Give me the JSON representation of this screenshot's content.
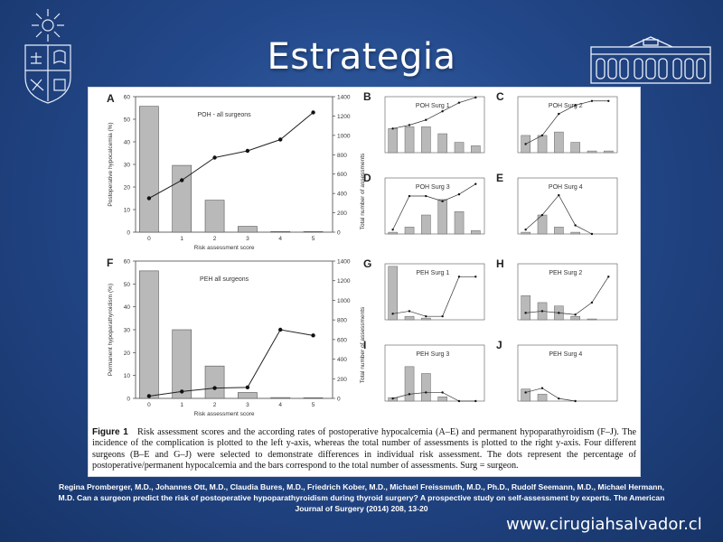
{
  "slide": {
    "title": "Estrategia",
    "website": "www.cirugiahsalvador.cl",
    "reference": [
      "Regina Promberger, M.D., Johannes Ott, M.D., Claudia Bures, M.D., Friedrich Kober, M.D., Michael Freissmuth, M.D., Ph.D., Rudolf Seemann, M.D., Michael Hermann,",
      "M.D. Can a surgeon predict the risk of postoperative hypoparathyroidism during thyroid surgery? A prospective study on self-assessment by experts. The American",
      "Journal of Surgery (2014) 208, 13-20"
    ]
  },
  "figure": {
    "caption_label": "Figure 1",
    "caption_text": "Risk assessment scores and the according rates of postoperative hypocalcemia (A–E) and permanent hypoparathyroidism (F–J). The incidence of the complication is plotted to the left y-axis, whereas the total number of assessments is plotted to the right y-axis. Four different surgeons (B–E and G–J) were selected to demonstrate differences in individual risk assessment. The dots represent the percentage of postoperative/permanent hypocalcemia and the bars correspond to the total number of assessments. Surg = surgeon.",
    "shared_right_label": "Total number of assessments",
    "panels": {
      "A": {
        "letter": "A",
        "title": "POH - all surgeons"
      },
      "B": {
        "letter": "B",
        "title": "POH Surg 1"
      },
      "C": {
        "letter": "C",
        "title": "POH Surg 2"
      },
      "D": {
        "letter": "D",
        "title": "POH Surg 3"
      },
      "E": {
        "letter": "E",
        "title": "POH Surg 4"
      },
      "F": {
        "letter": "F",
        "title": "PEH all surgeons"
      },
      "G": {
        "letter": "G",
        "title": "PEH Surg 1"
      },
      "H": {
        "letter": "H",
        "title": "PEH Surg 2"
      },
      "I": {
        "letter": "I",
        "title": "PEH Surg 3"
      },
      "J": {
        "letter": "J",
        "title": "PEH Surg 4"
      }
    }
  },
  "chart_data": [
    {
      "id": "A",
      "type": "bar",
      "title": "POH - all surgeons",
      "xlabel": "Risk assessment score",
      "ylabel": "Postoperative hypocalcemia (%)",
      "y2label": "Total number of assessments",
      "categories": [
        "0",
        "1",
        "2",
        "3",
        "4",
        "5"
      ],
      "ylim": [
        0,
        60
      ],
      "y2lim": [
        0,
        1400
      ],
      "yticks": [
        0,
        10,
        20,
        30,
        40,
        50,
        60
      ],
      "y2ticks": [
        0,
        200,
        400,
        600,
        800,
        1000,
        1200,
        1400
      ],
      "series": [
        {
          "type": "bar",
          "axis": "right",
          "values": [
            1300,
            690,
            330,
            60,
            7,
            6
          ]
        },
        {
          "type": "line",
          "axis": "left",
          "values": [
            15,
            23,
            33,
            36,
            41,
            53
          ]
        }
      ]
    },
    {
      "id": "F",
      "type": "bar",
      "title": "PEH all surgeons",
      "xlabel": "Risk assessment score",
      "ylabel": "Permanent hypoparathyroidism (%)",
      "y2label": "Total number of assessments",
      "categories": [
        "0",
        "1",
        "2",
        "3",
        "4",
        "5"
      ],
      "ylim": [
        0,
        60
      ],
      "y2lim": [
        0,
        1400
      ],
      "yticks": [
        0,
        10,
        20,
        30,
        40,
        50,
        60
      ],
      "y2ticks": [
        0,
        200,
        400,
        600,
        800,
        1000,
        1200,
        1400
      ],
      "series": [
        {
          "type": "bar",
          "axis": "right",
          "values": [
            1300,
            700,
            330,
            60,
            8,
            6
          ]
        },
        {
          "type": "line",
          "axis": "left",
          "values": [
            1,
            3,
            4.5,
            4.8,
            30,
            27.5
          ]
        }
      ]
    },
    {
      "id": "B",
      "type": "bar",
      "categories": [
        "0",
        "1",
        "2",
        "3",
        "4",
        "5"
      ],
      "series": [
        {
          "type": "bar",
          "axis": "right",
          "values": [
            28,
            30,
            30,
            22,
            12,
            8
          ]
        },
        {
          "type": "line",
          "axis": "left",
          "values": [
            28,
            32,
            38,
            48,
            58,
            64
          ]
        }
      ]
    },
    {
      "id": "C",
      "type": "bar",
      "categories": [
        "0",
        "1",
        "2",
        "3",
        "4",
        "5"
      ],
      "series": [
        {
          "type": "bar",
          "axis": "right",
          "values": [
            20,
            20,
            24,
            12,
            2,
            2
          ]
        },
        {
          "type": "line",
          "axis": "left",
          "values": [
            10,
            20,
            45,
            55,
            60,
            60
          ]
        }
      ]
    },
    {
      "id": "D",
      "type": "bar",
      "categories": [
        "0",
        "1",
        "2",
        "3",
        "4",
        "5"
      ],
      "series": [
        {
          "type": "bar",
          "axis": "right",
          "values": [
            2,
            8,
            22,
            40,
            26,
            4
          ]
        },
        {
          "type": "line",
          "axis": "left",
          "values": [
            5,
            44,
            44,
            38,
            46,
            58
          ]
        }
      ]
    },
    {
      "id": "E",
      "type": "bar",
      "categories": [
        "0",
        "1",
        "2",
        "3",
        "4"
      ],
      "series": [
        {
          "type": "bar",
          "axis": "right",
          "values": [
            2,
            22,
            8,
            2,
            0
          ]
        },
        {
          "type": "line",
          "axis": "left",
          "values": [
            5,
            22,
            45,
            10,
            0
          ]
        }
      ]
    },
    {
      "id": "G",
      "type": "bar",
      "categories": [
        "0",
        "1",
        "2",
        "3",
        "4",
        "5"
      ],
      "series": [
        {
          "type": "bar",
          "axis": "right",
          "values": [
            62,
            4,
            2,
            0,
            0,
            0
          ]
        },
        {
          "type": "line",
          "axis": "left",
          "values": [
            7,
            10,
            4,
            4,
            50,
            50
          ]
        }
      ]
    },
    {
      "id": "H",
      "type": "bar",
      "categories": [
        "0",
        "1",
        "2",
        "3",
        "4",
        "5"
      ],
      "series": [
        {
          "type": "bar",
          "axis": "right",
          "values": [
            28,
            20,
            16,
            4,
            1,
            0
          ]
        },
        {
          "type": "line",
          "axis": "left",
          "values": [
            8,
            10,
            8,
            6,
            20,
            50
          ]
        }
      ]
    },
    {
      "id": "I",
      "type": "bar",
      "categories": [
        "0",
        "1",
        "2",
        "3",
        "4",
        "5"
      ],
      "series": [
        {
          "type": "bar",
          "axis": "right",
          "values": [
            4,
            40,
            32,
            5,
            0,
            0
          ]
        },
        {
          "type": "line",
          "axis": "left",
          "values": [
            3,
            8,
            10,
            10,
            0,
            0
          ]
        }
      ]
    },
    {
      "id": "J",
      "type": "bar",
      "categories": [
        "0",
        "1",
        "2",
        "3"
      ],
      "series": [
        {
          "type": "bar",
          "axis": "right",
          "values": [
            14,
            8,
            0,
            0
          ]
        },
        {
          "type": "line",
          "axis": "left",
          "values": [
            10,
            15,
            3,
            0
          ]
        }
      ]
    }
  ]
}
